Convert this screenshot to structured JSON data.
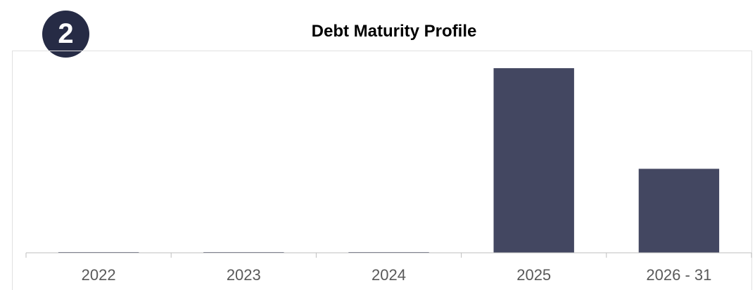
{
  "badge": {
    "number": "2"
  },
  "colors": {
    "bar": "#434761",
    "badge": "#262b45",
    "axis": "#bfbfbf"
  },
  "chart_data": {
    "type": "bar",
    "title": "Debt Maturity Profile",
    "categories": [
      "2022",
      "2023",
      "2024",
      "2025",
      "2026 - 31"
    ],
    "values": [
      0.3,
      0.3,
      0.3,
      100,
      45.5
    ],
    "ylim": [
      0,
      105
    ],
    "grid": false,
    "legend": "none"
  }
}
